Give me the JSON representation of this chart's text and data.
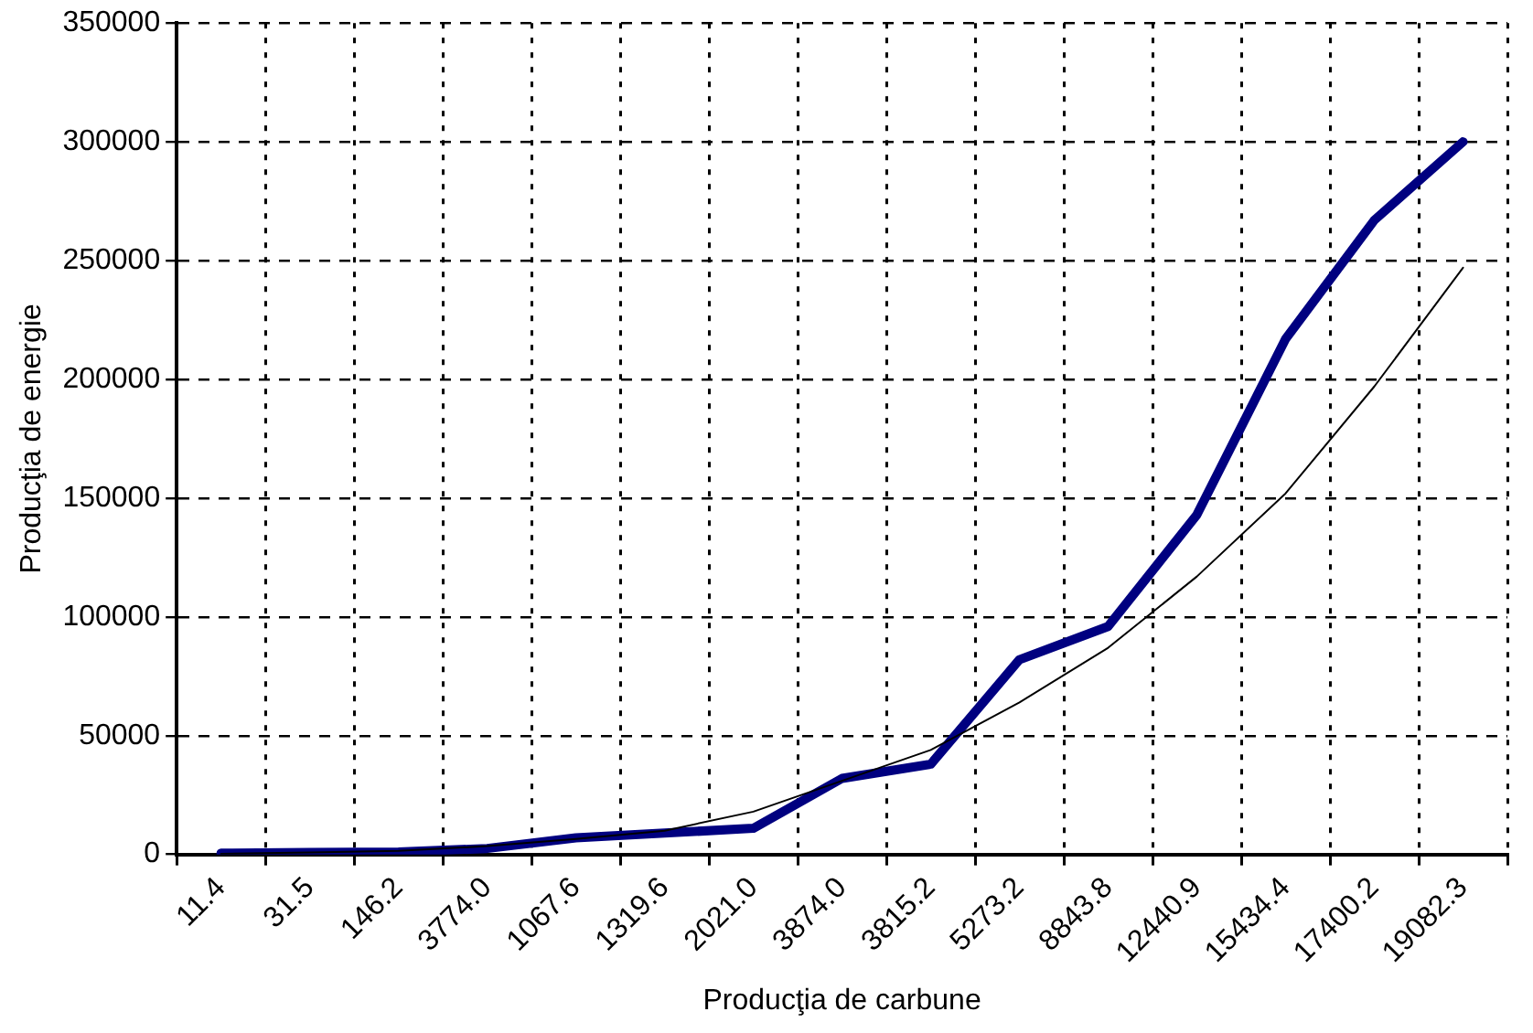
{
  "chart_data": {
    "type": "line",
    "xlabel": "Producţia de carbune",
    "ylabel": "Producţia de energie",
    "categories": [
      "11.4",
      "31.5",
      "146.2",
      "3774.0",
      "1067.6",
      "1319.6",
      "2021.0",
      "3874.0",
      "3815.2",
      "5273.2",
      "8843.8",
      "12440.9",
      "15434.4",
      "17400.2",
      "19082.3"
    ],
    "series": [
      {
        "color": "#000080",
        "values": [
          500,
          800,
          1000,
          2500,
          7000,
          9000,
          11000,
          32000,
          38000,
          82000,
          96000,
          143000,
          217000,
          267000,
          300000
        ]
      },
      {
        "color": "#000000",
        "values": [
          300,
          800,
          1500,
          3500,
          6500,
          10000,
          18000,
          31000,
          44000,
          64000,
          87000,
          117000,
          152000,
          197000,
          247000
        ]
      }
    ],
    "ylim": [
      0,
      350000
    ],
    "yticks": [
      0,
      50000,
      100000,
      150000,
      200000,
      250000,
      300000,
      350000
    ],
    "grid": true,
    "legend": false,
    "marker": "none",
    "line_style": "solid"
  }
}
